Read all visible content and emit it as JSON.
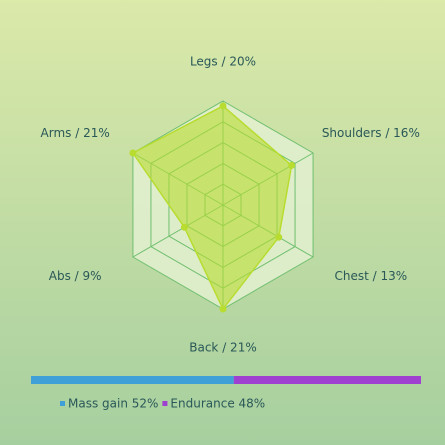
{
  "chart_data": [
    {
      "type": "radar",
      "labels": [
        "Legs / 20%",
        "Shoulders / 16%",
        "Chest / 13%",
        "Back / 21%",
        "Abs / 9%",
        "Arms / 21%"
      ],
      "values": [
        20,
        16,
        13,
        21,
        9,
        21
      ],
      "rlim": [
        0,
        21
      ],
      "color": "#b8dc30"
    },
    {
      "type": "stacked-bar",
      "series": [
        {
          "name": "Mass gain 52%",
          "color": "#3fa0d8",
          "values": [
            52
          ]
        },
        {
          "name": "Endurance 48%",
          "color": "#a040d0",
          "values": [
            48
          ]
        }
      ]
    }
  ]
}
